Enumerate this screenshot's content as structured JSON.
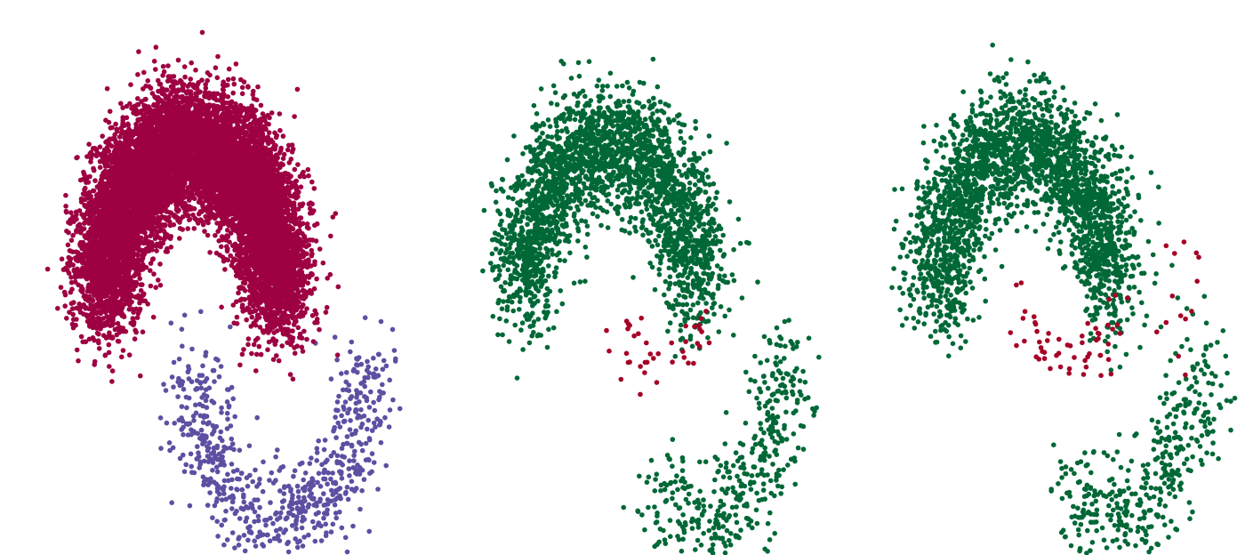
{
  "chart_data": [
    {
      "type": "scatter",
      "title": "",
      "xlabel": "",
      "ylabel": "",
      "axes_visible": false,
      "grid": false,
      "legend": "none",
      "xlim": [
        -1.6,
        2.5
      ],
      "ylim": [
        -1.35,
        1.45
      ],
      "series": [
        {
          "color": "#5E4FA2",
          "approx_count": 700,
          "shape": "lower moon",
          "center": [
            1.0,
            -0.4
          ],
          "radius": 1.0,
          "noise": 0.18,
          "angle_deg": [
            180,
            360
          ],
          "points": []
        },
        {
          "color": "#9E0142",
          "approx_count": 10000,
          "shape": "upper moon (dense)",
          "center": [
            0.0,
            0.0
          ],
          "radius": 1.0,
          "noise": 0.2,
          "angle_deg": [
            0,
            180
          ],
          "points": []
        }
      ]
    },
    {
      "type": "scatter",
      "title": "",
      "xlabel": "",
      "ylabel": "",
      "axes_visible": false,
      "grid": false,
      "legend": "none",
      "xlim": [
        -1.6,
        2.5
      ],
      "ylim": [
        -1.35,
        1.45
      ],
      "series": [
        {
          "color": "#006837",
          "approx_count": 2900,
          "shape": "two moons, mostly upper",
          "points": []
        },
        {
          "color": "#A50026",
          "approx_count": 40,
          "shape": "sparse, inside/below upper moon",
          "points": []
        }
      ]
    },
    {
      "type": "scatter",
      "title": "",
      "xlabel": "",
      "ylabel": "",
      "axes_visible": false,
      "grid": false,
      "legend": "none",
      "xlim": [
        -1.6,
        2.5
      ],
      "ylim": [
        -1.35,
        1.45
      ],
      "series": [
        {
          "color": "#006837",
          "approx_count": 2800,
          "shape": "two moons, mostly upper",
          "points": []
        },
        {
          "color": "#A50026",
          "approx_count": 70,
          "shape": "sparse, inside/below upper moon and right",
          "points": []
        }
      ]
    }
  ]
}
